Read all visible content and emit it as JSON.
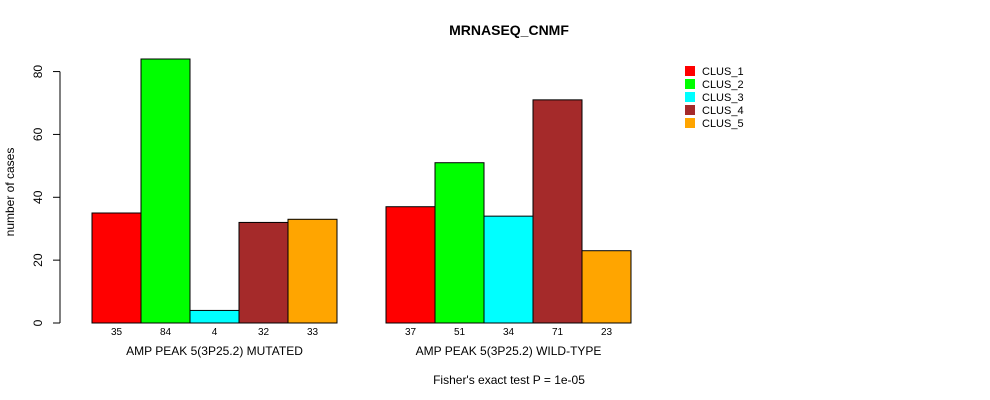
{
  "chart_data": {
    "type": "bar",
    "title": "MRNASEQ_CNMF",
    "ylabel": "number of cases",
    "ylim": [
      0,
      84
    ],
    "yticks": [
      0,
      20,
      40,
      60,
      80
    ],
    "grid": false,
    "legend_position": "top-right",
    "groups": [
      {
        "label": "AMP PEAK  5(3P25.2) MUTATED",
        "values": [
          35,
          84,
          4,
          32,
          33
        ],
        "count_labels": [
          "35",
          "84",
          "4",
          "32",
          "33"
        ]
      },
      {
        "label": "AMP PEAK  5(3P25.2) WILD-TYPE",
        "values": [
          37,
          51,
          34,
          71,
          23
        ],
        "count_labels": [
          "37",
          "51",
          "34",
          "71",
          "23"
        ]
      }
    ],
    "series": [
      {
        "name": "CLUS_1",
        "color": "#ff0000"
      },
      {
        "name": "CLUS_2",
        "color": "#00ff00"
      },
      {
        "name": "CLUS_3",
        "color": "#00ffff"
      },
      {
        "name": "CLUS_4",
        "color": "#a52a2a"
      },
      {
        "name": "CLUS_5",
        "color": "#ffa500"
      }
    ],
    "footnote": "Fisher's exact test P = 1e-05"
  }
}
